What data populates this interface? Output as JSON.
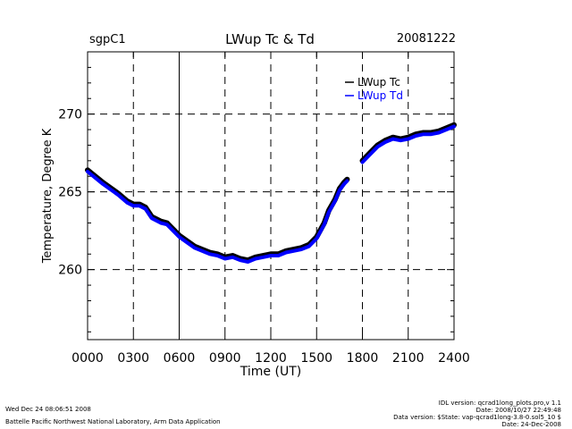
{
  "header": {
    "site": "sgpC1",
    "title": "LWup Tc & Td",
    "date": "20081222"
  },
  "footer": {
    "timestamp": "Wed Dec 24 08:06:51 2008",
    "lab": "Battelle Pacific Northwest National Laboratory, Arm Data Application",
    "idl": "IDL version: qcrad1long_plots.pro,v 1.1",
    "file_date": "Date: 2008/10/27 22:49:48",
    "data_version": "Data version: $State: vap-qcrad1long-3.8-0.sol5_10 $",
    "run_date": "Date: 24-Dec-2008"
  },
  "colors": {
    "tc": "#000000",
    "td": "#0000ff"
  },
  "chart_data": {
    "type": "line",
    "title": "LWup Tc & Td",
    "xlabel": "Time (UT)",
    "ylabel": "Temperature, Degree K",
    "xlim": [
      0,
      2400
    ],
    "ylim": [
      255.5,
      274
    ],
    "x_ticks": [
      "0000",
      "0300",
      "0600",
      "0900",
      "1200",
      "1500",
      "1800",
      "2100",
      "2400"
    ],
    "y_ticks": [
      "260",
      "265",
      "270"
    ],
    "grid": "dashed",
    "legend": "top-right",
    "series": [
      {
        "name": "LWup Tc",
        "color": "#000000",
        "segments": [
          [
            [
              0,
              266.4
            ],
            [
              100,
              265.6
            ],
            [
              200,
              264.9
            ],
            [
              260,
              264.4
            ],
            [
              300,
              264.2
            ],
            [
              340,
              264.2
            ],
            [
              380,
              264.0
            ],
            [
              420,
              263.4
            ],
            [
              480,
              263.1
            ],
            [
              520,
              263.0
            ],
            [
              600,
              262.2
            ],
            [
              700,
              261.5
            ],
            [
              800,
              261.1
            ],
            [
              850,
              261.0
            ],
            [
              900,
              260.8
            ],
            [
              950,
              260.9
            ],
            [
              1000,
              260.7
            ],
            [
              1050,
              260.6
            ],
            [
              1100,
              260.8
            ],
            [
              1150,
              260.9
            ],
            [
              1200,
              261.0
            ],
            [
              1250,
              261.0
            ],
            [
              1300,
              261.2
            ],
            [
              1350,
              261.3
            ],
            [
              1400,
              261.4
            ],
            [
              1450,
              261.6
            ],
            [
              1500,
              262.1
            ],
            [
              1550,
              263.0
            ],
            [
              1580,
              263.8
            ],
            [
              1620,
              264.5
            ],
            [
              1650,
              265.2
            ],
            [
              1680,
              265.6
            ],
            [
              1700,
              265.8
            ]
          ],
          [
            [
              1800,
              267.0
            ],
            [
              1850,
              267.5
            ],
            [
              1900,
              268.0
            ],
            [
              1950,
              268.3
            ],
            [
              2000,
              268.5
            ],
            [
              2050,
              268.4
            ],
            [
              2100,
              268.5
            ],
            [
              2150,
              268.7
            ],
            [
              2200,
              268.8
            ],
            [
              2250,
              268.8
            ],
            [
              2300,
              268.9
            ],
            [
              2350,
              269.1
            ],
            [
              2400,
              269.3
            ]
          ]
        ]
      },
      {
        "name": "LWup Td",
        "color": "#0000ff",
        "segments": [
          [
            [
              0,
              266.3
            ],
            [
              100,
              265.5
            ],
            [
              200,
              264.8
            ],
            [
              260,
              264.3
            ],
            [
              300,
              264.1
            ],
            [
              340,
              264.1
            ],
            [
              380,
              263.9
            ],
            [
              420,
              263.3
            ],
            [
              480,
              263.0
            ],
            [
              520,
              262.9
            ],
            [
              600,
              262.1
            ],
            [
              700,
              261.4
            ],
            [
              800,
              261.0
            ],
            [
              850,
              260.9
            ],
            [
              900,
              260.7
            ],
            [
              950,
              260.8
            ],
            [
              1000,
              260.6
            ],
            [
              1050,
              260.5
            ],
            [
              1100,
              260.7
            ],
            [
              1150,
              260.8
            ],
            [
              1200,
              260.9
            ],
            [
              1250,
              260.9
            ],
            [
              1300,
              261.1
            ],
            [
              1350,
              261.2
            ],
            [
              1400,
              261.3
            ],
            [
              1450,
              261.5
            ],
            [
              1500,
              262.0
            ],
            [
              1550,
              262.9
            ],
            [
              1580,
              263.7
            ],
            [
              1620,
              264.4
            ],
            [
              1650,
              265.1
            ],
            [
              1680,
              265.5
            ],
            [
              1700,
              265.7
            ]
          ],
          [
            [
              1800,
              266.9
            ],
            [
              1850,
              267.4
            ],
            [
              1900,
              267.9
            ],
            [
              1950,
              268.2
            ],
            [
              2000,
              268.4
            ],
            [
              2050,
              268.3
            ],
            [
              2100,
              268.4
            ],
            [
              2150,
              268.6
            ],
            [
              2200,
              268.7
            ],
            [
              2250,
              268.7
            ],
            [
              2300,
              268.8
            ],
            [
              2350,
              269.0
            ],
            [
              2400,
              269.2
            ]
          ]
        ]
      }
    ]
  }
}
